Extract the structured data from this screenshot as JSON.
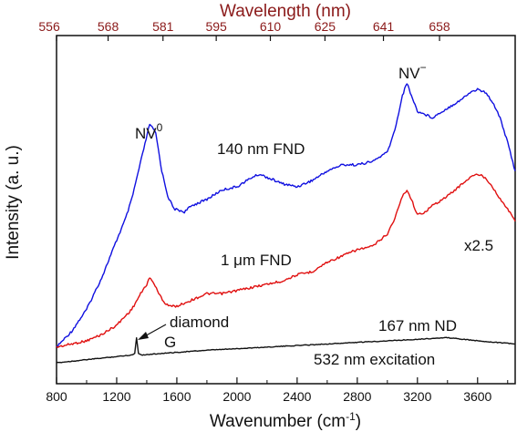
{
  "chart_data": {
    "type": "line",
    "xlabel": "Wavenumber (cm",
    "xlabel_sup": "-1",
    "xlabel_close": ")",
    "ylabel": "Intensity (a. u.)",
    "top_xlabel": "Wavelength (nm)",
    "xlim": [
      800,
      3850
    ],
    "ylim": [
      0,
      1
    ],
    "x_ticks": [
      800,
      1200,
      1600,
      2000,
      2400,
      2800,
      3200,
      3600
    ],
    "x_tick_labels": [
      "800",
      "1200",
      "1600",
      "2000",
      "2400",
      "2800",
      "3200",
      "3600"
    ],
    "top_ticks": [
      {
        "x": 752,
        "label": "556"
      },
      {
        "x": 1143,
        "label": "568"
      },
      {
        "x": 1508,
        "label": "581"
      },
      {
        "x": 1862,
        "label": "595"
      },
      {
        "x": 2222,
        "label": "610"
      },
      {
        "x": 2585,
        "label": "625"
      },
      {
        "x": 2974,
        "label": "641"
      },
      {
        "x": 3347,
        "label": "658"
      }
    ],
    "series": [
      {
        "name": "140 nm FND",
        "color": "#1010e0",
        "x": [
          800,
          900,
          1000,
          1100,
          1200,
          1260,
          1300,
          1340,
          1380,
          1420,
          1460,
          1500,
          1540,
          1580,
          1650,
          1700,
          1800,
          1900,
          2000,
          2100,
          2150,
          2200,
          2300,
          2400,
          2500,
          2600,
          2700,
          2800,
          2900,
          3000,
          3050,
          3100,
          3130,
          3160,
          3200,
          3250,
          3300,
          3400,
          3500,
          3550,
          3600,
          3650,
          3700,
          3750,
          3800,
          3850
        ],
        "y": [
          0.07,
          0.12,
          0.19,
          0.29,
          0.41,
          0.48,
          0.54,
          0.62,
          0.7,
          0.78,
          0.75,
          0.63,
          0.55,
          0.51,
          0.5,
          0.52,
          0.54,
          0.57,
          0.58,
          0.61,
          0.62,
          0.61,
          0.59,
          0.58,
          0.6,
          0.63,
          0.65,
          0.65,
          0.66,
          0.69,
          0.76,
          0.87,
          0.91,
          0.87,
          0.82,
          0.81,
          0.8,
          0.83,
          0.86,
          0.88,
          0.89,
          0.88,
          0.85,
          0.8,
          0.72,
          0.63
        ]
      },
      {
        "name": "1 μm FND",
        "color": "#e01010",
        "x": [
          800,
          900,
          1000,
          1100,
          1200,
          1300,
          1360,
          1400,
          1420,
          1440,
          1480,
          1520,
          1560,
          1600,
          1700,
          1800,
          1900,
          2000,
          2100,
          2200,
          2300,
          2400,
          2500,
          2600,
          2700,
          2800,
          2900,
          3000,
          3050,
          3100,
          3130,
          3160,
          3200,
          3250,
          3300,
          3400,
          3500,
          3550,
          3600,
          3650,
          3700,
          3750,
          3800,
          3850
        ],
        "y": [
          0.07,
          0.08,
          0.09,
          0.11,
          0.14,
          0.19,
          0.24,
          0.27,
          0.29,
          0.28,
          0.24,
          0.21,
          0.2,
          0.2,
          0.22,
          0.24,
          0.24,
          0.25,
          0.26,
          0.27,
          0.28,
          0.3,
          0.31,
          0.34,
          0.36,
          0.38,
          0.39,
          0.43,
          0.48,
          0.55,
          0.57,
          0.54,
          0.49,
          0.5,
          0.52,
          0.55,
          0.59,
          0.61,
          0.62,
          0.61,
          0.58,
          0.54,
          0.51,
          0.47
        ]
      },
      {
        "name": "167 nm ND",
        "color": "#111111",
        "x": [
          800,
          1000,
          1200,
          1300,
          1320,
          1332,
          1345,
          1370,
          1500,
          1800,
          2200,
          2600,
          3000,
          3400,
          3600,
          3850
        ],
        "y": [
          0.02,
          0.03,
          0.04,
          0.045,
          0.05,
          0.1,
          0.05,
          0.045,
          0.05,
          0.06,
          0.07,
          0.08,
          0.09,
          0.1,
          0.09,
          0.08
        ]
      }
    ],
    "annotations": {
      "nv0_base": "NV",
      "nv0_sup": "0",
      "nvm_base": "NV",
      "nvm_sup": "−",
      "fnd140": "140 nm FND",
      "fnd1um": "1 μm FND",
      "scale": "x2.5",
      "diamond": "diamond",
      "g_band": "G",
      "nd167": "167 nm ND",
      "excitation": "532 nm excitation"
    }
  }
}
